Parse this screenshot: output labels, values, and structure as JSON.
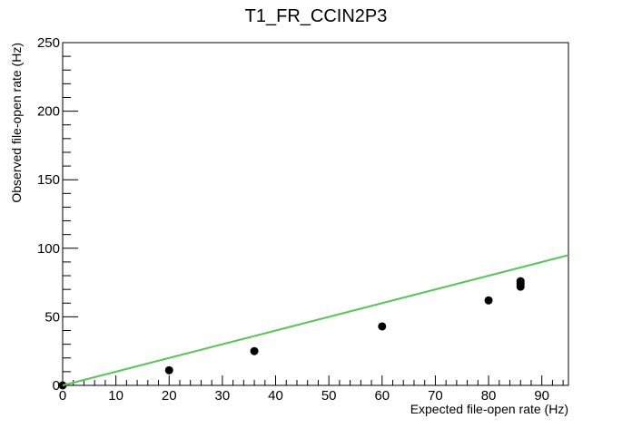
{
  "chart_data": {
    "type": "scatter",
    "title": "T1_FR_CCIN2P3",
    "xlabel": "Expected file-open rate (Hz)",
    "ylabel": "Observed file-open rate (Hz)",
    "xlim": [
      0,
      95
    ],
    "ylim": [
      0,
      250
    ],
    "x_ticks": [
      0,
      10,
      20,
      30,
      40,
      50,
      60,
      70,
      80,
      90
    ],
    "y_ticks": [
      0,
      50,
      100,
      150,
      200,
      250
    ],
    "grid": false,
    "series": [
      {
        "kind": "points",
        "color": "#000000",
        "points": [
          {
            "x": 0,
            "y": 0
          },
          {
            "x": 20,
            "y": 11
          },
          {
            "x": 36,
            "y": 25
          },
          {
            "x": 60,
            "y": 43
          },
          {
            "x": 80,
            "y": 62
          },
          {
            "x": 86,
            "y": 72
          },
          {
            "x": 86,
            "y": 74
          },
          {
            "x": 86,
            "y": 76
          }
        ]
      },
      {
        "kind": "line",
        "color": "#5ac45a",
        "points": [
          {
            "x": 0,
            "y": 0
          },
          {
            "x": 95,
            "y": 95
          }
        ]
      }
    ]
  }
}
